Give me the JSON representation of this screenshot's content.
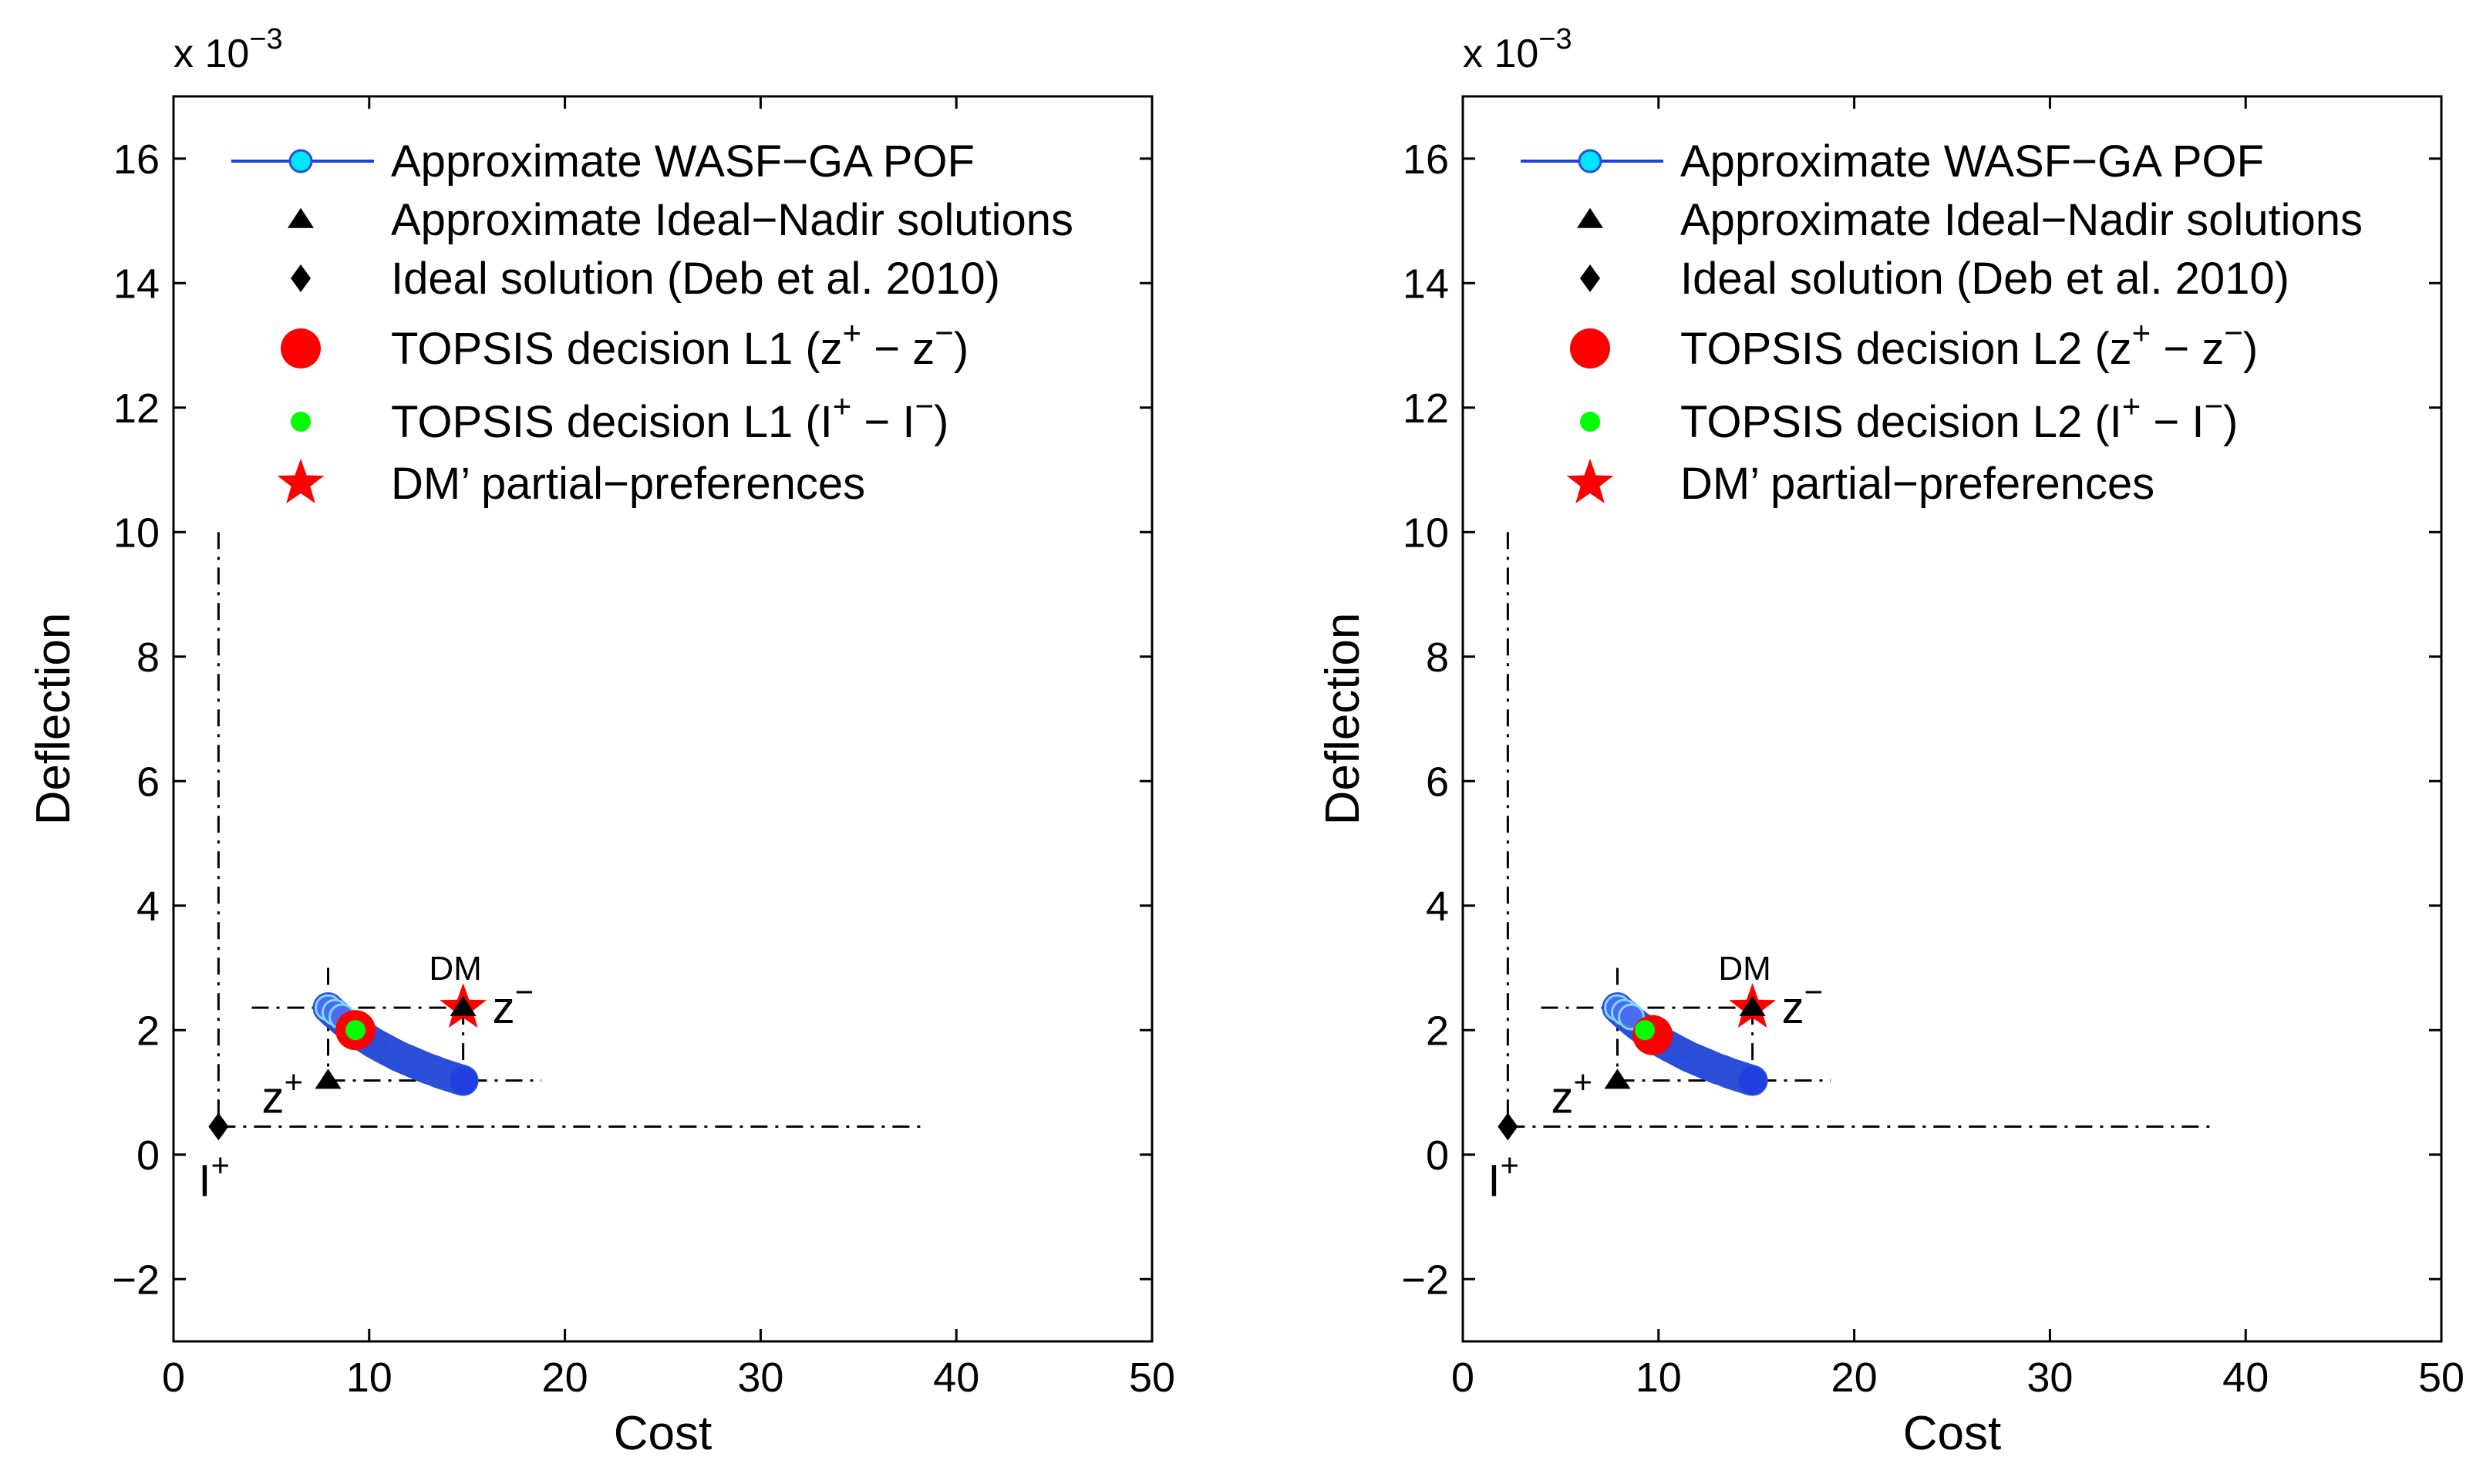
{
  "chart_data": [
    {
      "type": "scatter",
      "panel": "left",
      "xlabel": "Cost",
      "ylabel": "Deflection",
      "y_exponent_label": "x 10",
      "y_exponent_power": "−3",
      "xlim": [
        0,
        50
      ],
      "ylim": [
        -3,
        17
      ],
      "x_ticks": [
        0,
        10,
        20,
        30,
        40,
        50
      ],
      "y_ticks": [
        -2,
        0,
        2,
        4,
        6,
        8,
        10,
        12,
        14,
        16
      ],
      "x_tick_labels": [
        "0",
        "10",
        "20",
        "30",
        "40",
        "50"
      ],
      "y_tick_labels": [
        "−2",
        "0",
        "2",
        "4",
        "6",
        "8",
        "10",
        "12",
        "14",
        "16"
      ],
      "grid": false,
      "legend_position": "top",
      "legend": [
        {
          "key": "pof",
          "label": "Approximate WASF−GA POF"
        },
        {
          "key": "idealnadir",
          "label": "Approximate Ideal−Nadir solutions"
        },
        {
          "key": "ideal",
          "label": "Ideal solution (Deb et al. 2010)"
        },
        {
          "key": "topsis_z",
          "label": "TOPSIS decision L1 (z",
          "sup1": "+",
          "mid": " − z",
          "sup2": "−",
          "end": ")"
        },
        {
          "key": "topsis_i",
          "label": "TOPSIS decision L1 (I",
          "sup1": "+",
          "mid": " − I",
          "sup2": "−",
          "end": ")"
        },
        {
          "key": "dm",
          "label": "DM’ partial−preferences"
        }
      ],
      "series": [
        {
          "name": "Approximate WASF-GA POF",
          "x": [
            7.9,
            8.2,
            8.5,
            8.8,
            9.1,
            9.4,
            9.7,
            10.0,
            10.3,
            10.6,
            10.9,
            11.2,
            11.5,
            11.8,
            12.1,
            12.4,
            12.7,
            13.0,
            13.3,
            13.6,
            13.9,
            14.2,
            14.5,
            14.8
          ],
          "y": [
            2.36,
            2.27,
            2.19,
            2.11,
            2.04,
            1.97,
            1.9,
            1.84,
            1.78,
            1.73,
            1.68,
            1.63,
            1.58,
            1.54,
            1.5,
            1.46,
            1.42,
            1.38,
            1.35,
            1.31,
            1.28,
            1.25,
            1.22,
            1.19
          ]
        }
      ],
      "ideal_nadir": [
        {
          "name": "z+",
          "x": 7.9,
          "y": 1.19
        },
        {
          "name": "z−",
          "x": 14.8,
          "y": 2.36
        }
      ],
      "ideal_solution": {
        "name": "I+",
        "x": 2.3,
        "y": 0.45
      },
      "topsis_z": {
        "x": 9.3,
        "y": 2.0
      },
      "topsis_i": {
        "x": 9.3,
        "y": 2.0
      },
      "dm_point": {
        "x": 14.8,
        "y": 2.36
      },
      "ref_lines": {
        "ideal_vertical_top": 10,
        "ideal_horizontal_right": 38.5,
        "z_box_left": 4.0,
        "z_box_right": 18.8,
        "z_box_bottom_ext": 1.0,
        "z_box_top_ext": 3.0
      },
      "annotations": {
        "dm": "DM",
        "z_plus": "z",
        "z_plus_sup": "+",
        "z_minus": "z",
        "z_minus_sup": "−",
        "i_plus": "I",
        "i_plus_sup": "+"
      }
    },
    {
      "type": "scatter",
      "panel": "right",
      "xlabel": "Cost",
      "ylabel": "Deflection",
      "y_exponent_label": "x 10",
      "y_exponent_power": "−3",
      "xlim": [
        0,
        50
      ],
      "ylim": [
        -3,
        17
      ],
      "x_ticks": [
        0,
        10,
        20,
        30,
        40,
        50
      ],
      "y_ticks": [
        -2,
        0,
        2,
        4,
        6,
        8,
        10,
        12,
        14,
        16
      ],
      "x_tick_labels": [
        "0",
        "10",
        "20",
        "30",
        "40",
        "50"
      ],
      "y_tick_labels": [
        "−2",
        "0",
        "2",
        "4",
        "6",
        "8",
        "10",
        "12",
        "14",
        "16"
      ],
      "grid": false,
      "legend_position": "top",
      "legend": [
        {
          "key": "pof",
          "label": "Approximate WASF−GA POF"
        },
        {
          "key": "idealnadir",
          "label": "Approximate Ideal−Nadir solutions"
        },
        {
          "key": "ideal",
          "label": "Ideal solution (Deb et al. 2010)"
        },
        {
          "key": "topsis_z",
          "label": "TOPSIS decision L2 (z",
          "sup1": "+",
          "mid": " − z",
          "sup2": "−",
          "end": ")"
        },
        {
          "key": "topsis_i",
          "label": "TOPSIS decision L2 (I",
          "sup1": "+",
          "mid": " − I",
          "sup2": "−",
          "end": ")"
        },
        {
          "key": "dm",
          "label": "DM’ partial−preferences"
        }
      ],
      "series": [
        {
          "name": "Approximate WASF-GA POF",
          "x": [
            7.9,
            8.2,
            8.5,
            8.8,
            9.1,
            9.4,
            9.7,
            10.0,
            10.3,
            10.6,
            10.9,
            11.2,
            11.5,
            11.8,
            12.1,
            12.4,
            12.7,
            13.0,
            13.3,
            13.6,
            13.9,
            14.2,
            14.5,
            14.8
          ],
          "y": [
            2.36,
            2.27,
            2.19,
            2.11,
            2.04,
            1.97,
            1.9,
            1.84,
            1.78,
            1.73,
            1.68,
            1.63,
            1.58,
            1.54,
            1.5,
            1.46,
            1.42,
            1.38,
            1.35,
            1.31,
            1.28,
            1.25,
            1.22,
            1.19
          ]
        }
      ],
      "ideal_nadir": [
        {
          "name": "z+",
          "x": 7.9,
          "y": 1.19
        },
        {
          "name": "z−",
          "x": 14.8,
          "y": 2.36
        }
      ],
      "ideal_solution": {
        "name": "I+",
        "x": 2.3,
        "y": 0.45
      },
      "topsis_z": {
        "x": 9.7,
        "y": 1.92
      },
      "topsis_i": {
        "x": 9.3,
        "y": 2.0
      },
      "dm_point": {
        "x": 14.8,
        "y": 2.36
      },
      "ref_lines": {
        "ideal_vertical_top": 10,
        "ideal_horizontal_right": 38.5,
        "z_box_left": 4.0,
        "z_box_right": 18.8,
        "z_box_bottom_ext": 1.0,
        "z_box_top_ext": 3.0
      },
      "annotations": {
        "dm": "DM",
        "z_plus": "z",
        "z_plus_sup": "+",
        "z_minus": "z",
        "z_minus_sup": "−",
        "i_plus": "I",
        "i_plus_sup": "+"
      }
    }
  ],
  "colors": {
    "pof_fill": "#1f3fe0",
    "pof_line": "#1f3fe0",
    "pof_legend_fill": "#00e5ff",
    "pof_edge": "#2b4fd8",
    "topsis_z": "#ff0000",
    "topsis_i": "#00ff00",
    "dm_star": "#ff0000",
    "black": "#000000"
  }
}
